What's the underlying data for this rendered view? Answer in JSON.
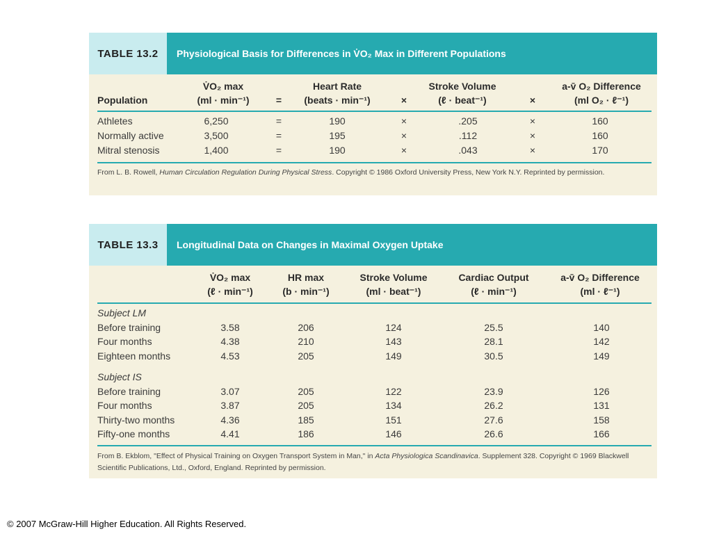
{
  "table1": {
    "id": "TABLE 13.2",
    "title": "Physiological Basis for Differences in V̇O₂ Max in Different Populations",
    "headers": {
      "population": "Population",
      "vo2_l1": "V̇O₂ max",
      "vo2_l2": "(ml · min⁻¹)",
      "op1": "=",
      "hr_l1": "Heart Rate",
      "hr_l2": "(beats · min⁻¹)",
      "op2": "×",
      "sv_l1": "Stroke Volume",
      "sv_l2": "(ℓ · beat⁻¹)",
      "op3": "×",
      "avo2_l1": "a-v̄ O₂ Difference",
      "avo2_l2": "(ml O₂ · ℓ⁻¹)"
    },
    "rows": [
      {
        "population": "Athletes",
        "vo2": "6,250",
        "eq": "=",
        "hr": "190",
        "x1": "×",
        "sv": ".205",
        "x2": "×",
        "avo2": "160"
      },
      {
        "population": "Normally active",
        "vo2": "3,500",
        "eq": "=",
        "hr": "195",
        "x1": "×",
        "sv": ".112",
        "x2": "×",
        "avo2": "160"
      },
      {
        "population": "Mitral stenosis",
        "vo2": "1,400",
        "eq": "=",
        "hr": "190",
        "x1": "×",
        "sv": ".043",
        "x2": "×",
        "avo2": "170"
      }
    ],
    "footnote": {
      "pre": "From L. B. Rowell, ",
      "italic": "Human Circulation Regulation During Physical Stress",
      "post": ". Copyright © 1986 Oxford University Press, New York N.Y. Reprinted by permission."
    }
  },
  "table2": {
    "id": "TABLE 13.3",
    "title": "Longitudinal Data on Changes in Maximal Oxygen Uptake",
    "headers": {
      "vo2_l1": "V̇O₂ max",
      "vo2_l2": "(ℓ · min⁻¹)",
      "hr_l1": "HR max",
      "hr_l2": "(b · min⁻¹)",
      "sv_l1": "Stroke Volume",
      "sv_l2": "(ml · beat⁻¹)",
      "co_l1": "Cardiac Output",
      "co_l2": "(ℓ · min⁻¹)",
      "avo2_l1": "a-v̄ O₂ Difference",
      "avo2_l2": "(ml · ℓ⁻¹)"
    },
    "groups": [
      {
        "subject": "Subject LM",
        "rows": [
          {
            "label": "Before training",
            "vo2": "3.58",
            "hr": "206",
            "sv": "124",
            "co": "25.5",
            "avo2": "140"
          },
          {
            "label": "Four months",
            "vo2": "4.38",
            "hr": "210",
            "sv": "143",
            "co": "28.1",
            "avo2": "142"
          },
          {
            "label": "Eighteen months",
            "vo2": "4.53",
            "hr": "205",
            "sv": "149",
            "co": "30.5",
            "avo2": "149"
          }
        ]
      },
      {
        "subject": "Subject IS",
        "rows": [
          {
            "label": "Before training",
            "vo2": "3.07",
            "hr": "205",
            "sv": "122",
            "co": "23.9",
            "avo2": "126"
          },
          {
            "label": "Four months",
            "vo2": "3.87",
            "hr": "205",
            "sv": "134",
            "co": "26.2",
            "avo2": "131"
          },
          {
            "label": "Thirty-two months",
            "vo2": "4.36",
            "hr": "185",
            "sv": "151",
            "co": "27.6",
            "avo2": "158"
          },
          {
            "label": "Fifty-one months",
            "vo2": "4.41",
            "hr": "186",
            "sv": "146",
            "co": "26.6",
            "avo2": "166"
          }
        ]
      }
    ],
    "footnote": {
      "pre": "From B. Ekblom, \"Effect of Physical Training on Oxygen Transport System in Man,\" in ",
      "italic": "Acta Physiologica Scandinavica",
      "post": ". Supplement 328. Copyright © 1969 Blackwell Scientific Publications, Ltd., Oxford, England. Reprinted by permission."
    }
  },
  "copyright": "© 2007 McGraw-Hill Higher Education. All Rights Reserved."
}
